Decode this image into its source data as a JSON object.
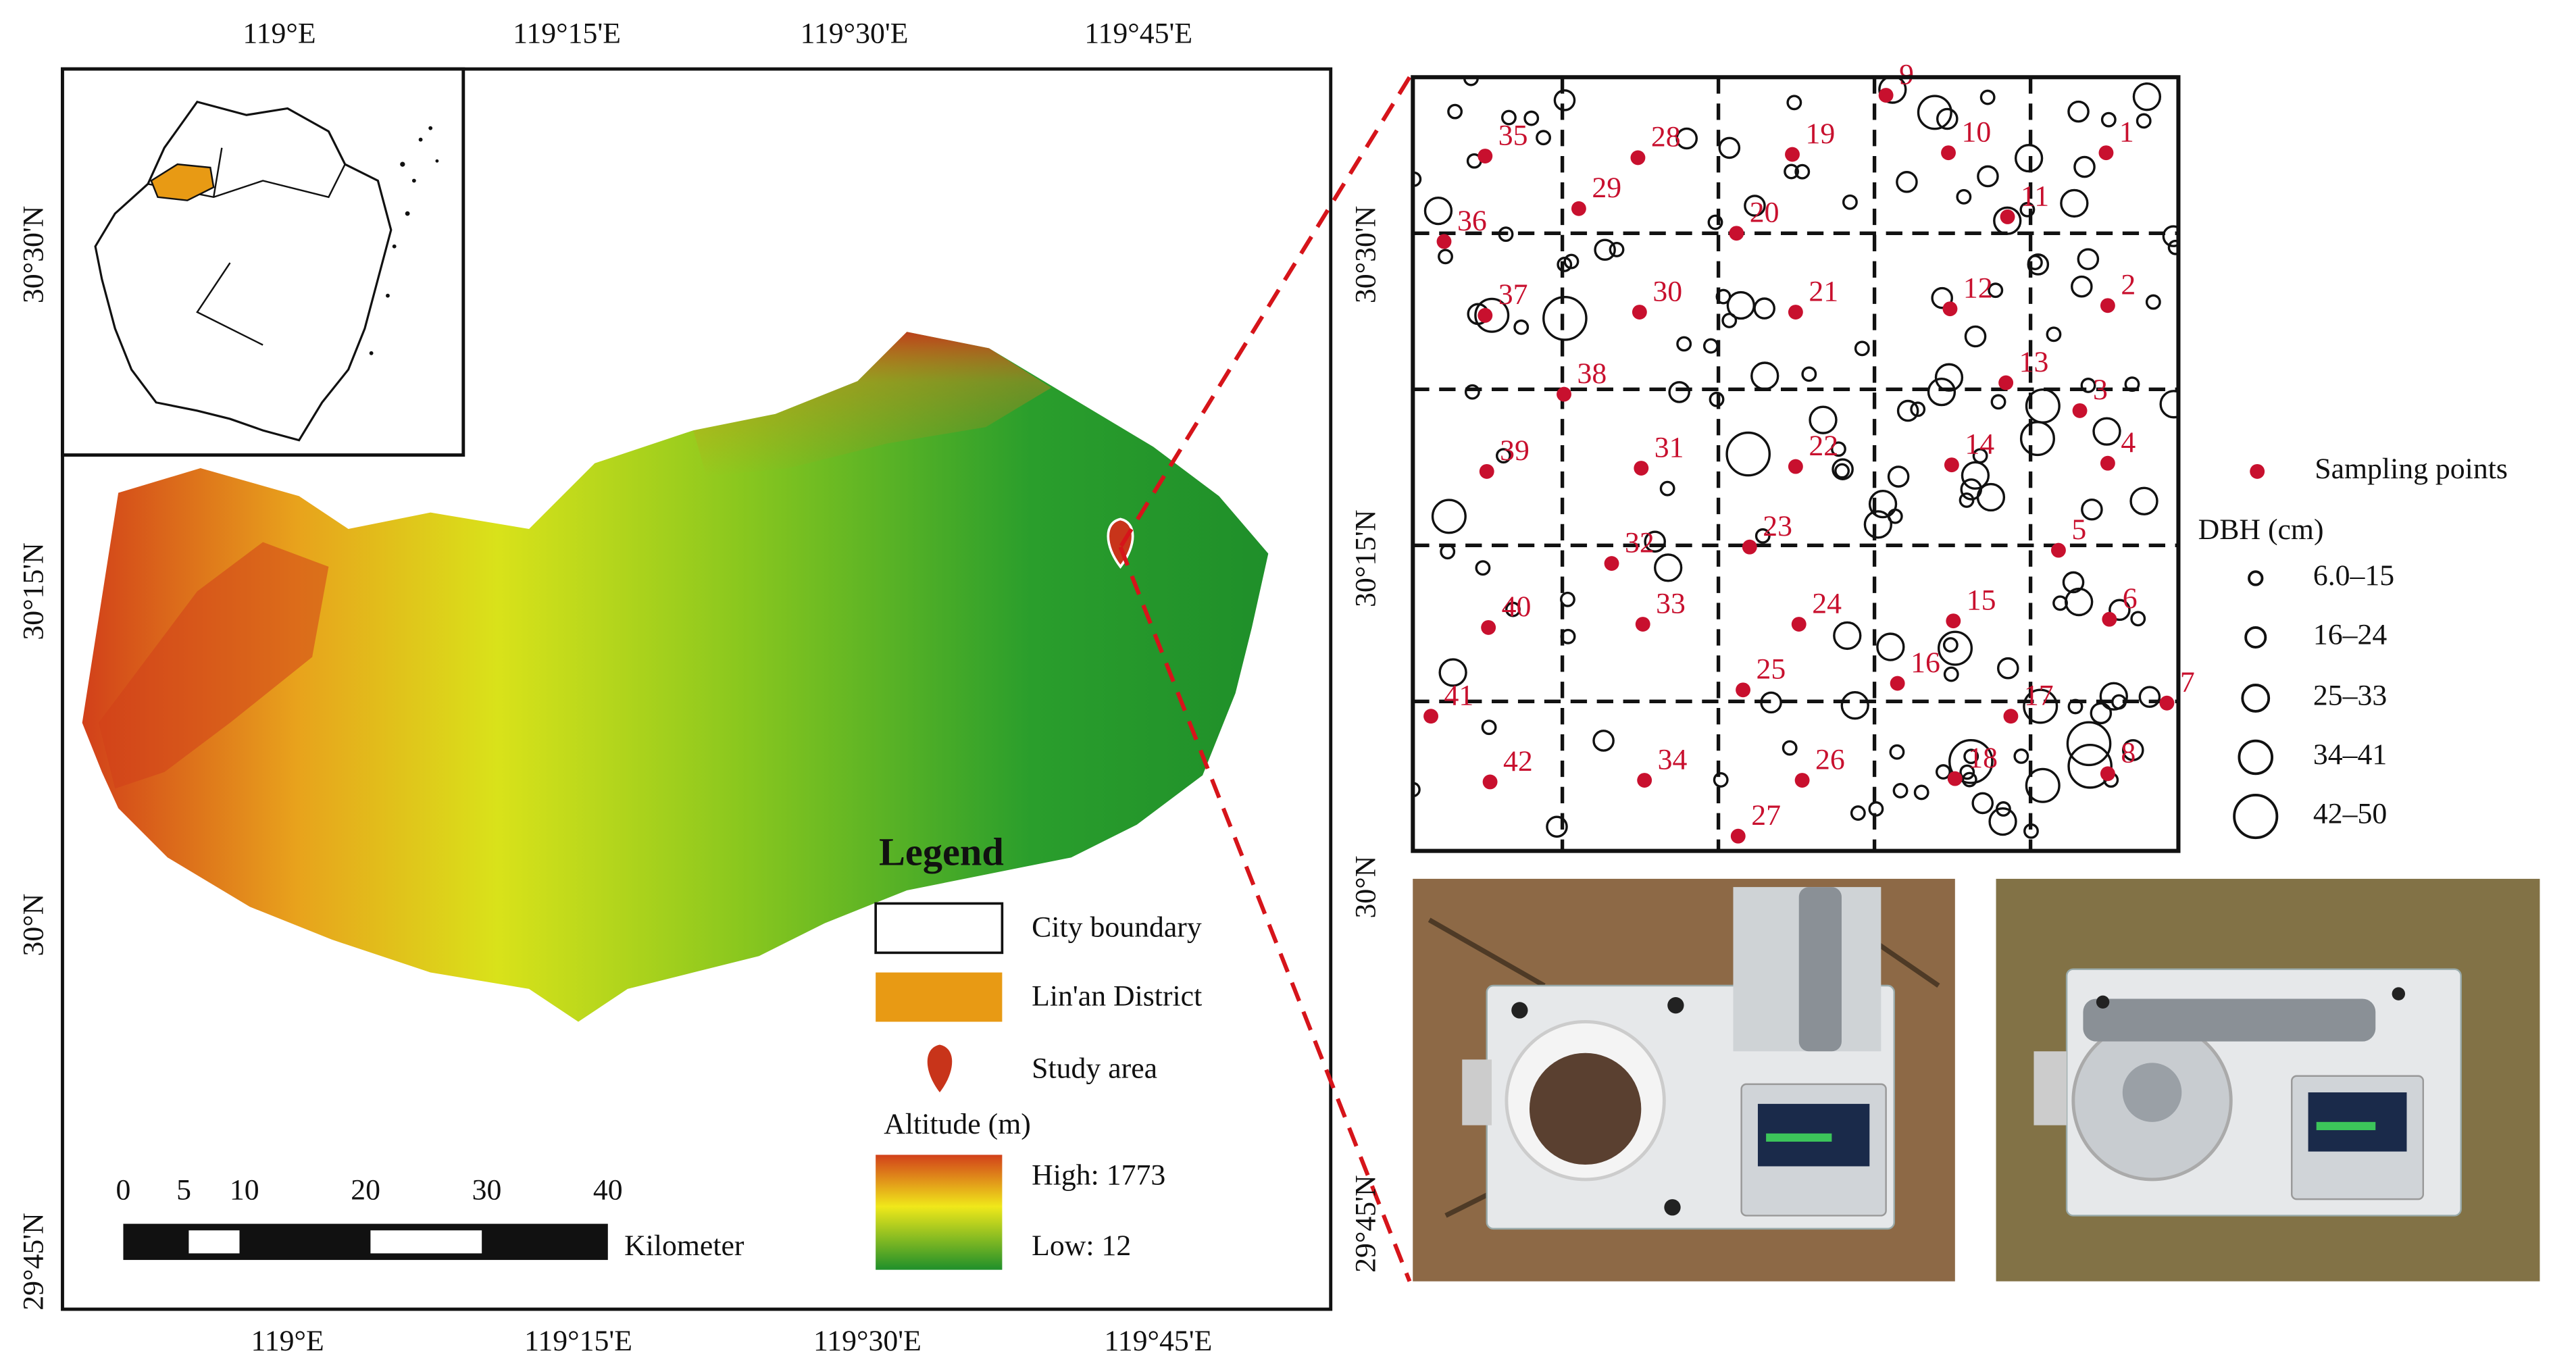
{
  "map": {
    "top_longitudes": [
      "119°E",
      "119°15'E",
      "119°30'E",
      "119°45'E"
    ],
    "bottom_longitudes": [
      "119°E",
      "119°15'E",
      "119°30'E",
      "119°45'E"
    ],
    "left_latitudes": [
      "30°30'N",
      "30°15'N",
      "30°N",
      "29°45'N"
    ],
    "right_latitudes": [
      "30°30'N",
      "30°15'N",
      "30°N",
      "29°45'N"
    ],
    "legend": {
      "title": "Legend",
      "items": [
        "City boundary",
        "Lin'an District",
        "Study area"
      ],
      "altitude_title": "Altitude (m)",
      "high": "High: 1773",
      "low": "Low: 12"
    },
    "scale_bar": {
      "ticks": [
        0,
        5,
        10,
        20,
        30,
        40
      ],
      "unit": "Kilometer"
    }
  },
  "plot": {
    "sampling_points": [
      1,
      2,
      3,
      4,
      5,
      6,
      7,
      8,
      9,
      10,
      11,
      12,
      13,
      14,
      15,
      16,
      17,
      18,
      19,
      20,
      21,
      22,
      23,
      24,
      25,
      26,
      27,
      28,
      29,
      30,
      31,
      32,
      33,
      34,
      35,
      36,
      37,
      38,
      39,
      40,
      41,
      42
    ]
  },
  "plot_legend": {
    "sampling_points": "Sampling points",
    "dbh_title": "DBH (cm)",
    "dbh_classes": [
      "6.0–15",
      "16–24",
      "25–33",
      "34–41",
      "42–50"
    ]
  }
}
